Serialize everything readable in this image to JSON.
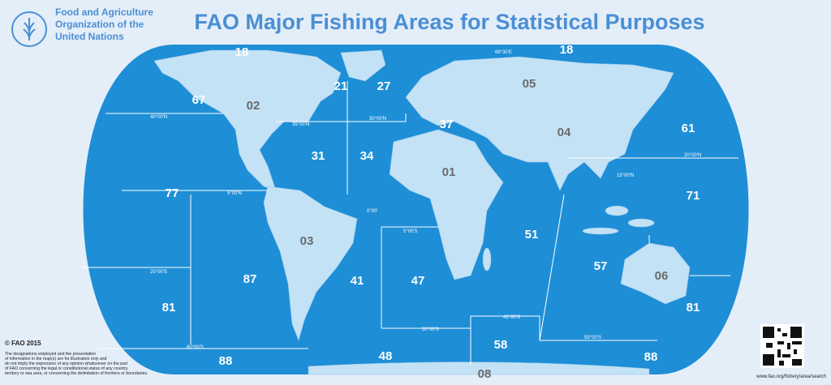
{
  "header": {
    "org": [
      "Food and Agriculture",
      "Organization of the",
      "United Nations"
    ],
    "title": "FAO Major Fishing Areas for Statistical Purposes"
  },
  "areas": [
    "18",
    "18",
    "21",
    "27",
    "05",
    "67",
    "02",
    "37",
    "61",
    "04",
    "31",
    "34",
    "01",
    "77",
    "71",
    "03",
    "51",
    "87",
    "41",
    "47",
    "57",
    "06",
    "81",
    "81",
    "88",
    "48",
    "58",
    "88",
    "08"
  ],
  "coordinates": [
    "40°00'N",
    "35°00'N",
    "30°00'N",
    "20°00'N",
    "15°00'N",
    "5°00'N",
    "0°00'",
    "5°00'S",
    "25°00'S",
    "45°00'S",
    "50°00'S",
    "55°00'S",
    "60°00'S",
    "68°30'E"
  ],
  "footer": {
    "copyright": "© FAO 2015",
    "disclaimer": [
      "The designations employed and the presentation",
      "of information in the map(s) are for illustration only and",
      "do not imply the expression of any opinion whatsoever on the part",
      "of FAO concerning the legal or constitutional status of any country,",
      "territory or sea area, or concerning the delimitation of frontiers or boundaries."
    ],
    "url": "www.fao.org/fishery/area/search"
  }
}
